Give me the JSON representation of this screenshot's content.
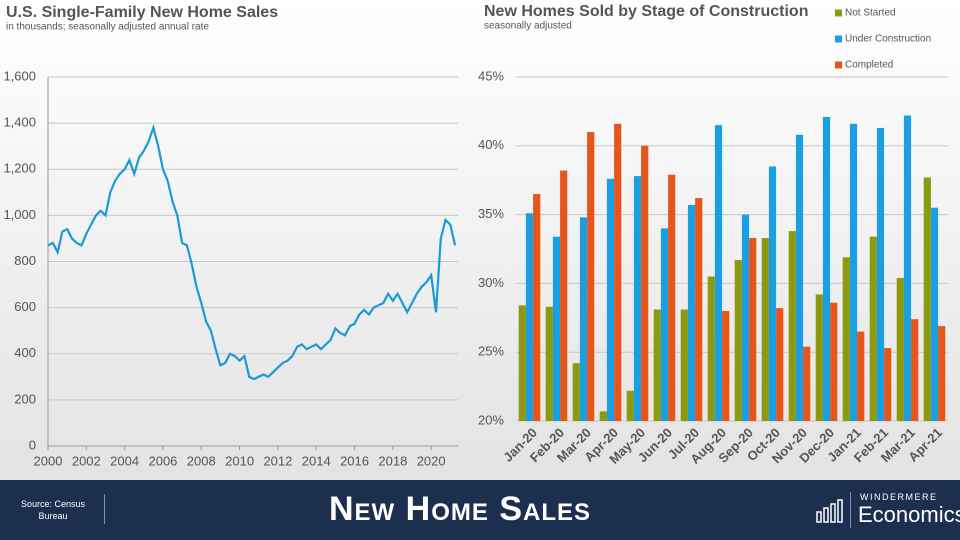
{
  "chart_data": [
    {
      "type": "line",
      "title": "U.S. Single-Family New Home Sales",
      "subtitle": "in thousands; seasonally adjusted annual rate",
      "x": [
        2000,
        2000.25,
        2000.5,
        2000.75,
        2001,
        2001.25,
        2001.5,
        2001.75,
        2002,
        2002.25,
        2002.5,
        2002.75,
        2003,
        2003.25,
        2003.5,
        2003.75,
        2004,
        2004.25,
        2004.5,
        2004.75,
        2005,
        2005.25,
        2005.5,
        2005.75,
        2006,
        2006.25,
        2006.5,
        2006.75,
        2007,
        2007.25,
        2007.5,
        2007.75,
        2008,
        2008.25,
        2008.5,
        2008.75,
        2009,
        2009.25,
        2009.5,
        2009.75,
        2010,
        2010.25,
        2010.5,
        2010.75,
        2011,
        2011.25,
        2011.5,
        2011.75,
        2012,
        2012.25,
        2012.5,
        2012.75,
        2013,
        2013.25,
        2013.5,
        2013.75,
        2014,
        2014.25,
        2014.5,
        2014.75,
        2015,
        2015.25,
        2015.5,
        2015.75,
        2016,
        2016.25,
        2016.5,
        2016.75,
        2017,
        2017.25,
        2017.5,
        2017.75,
        2018,
        2018.25,
        2018.5,
        2018.75,
        2019,
        2019.25,
        2019.5,
        2019.75,
        2020,
        2020.25,
        2020.5,
        2020.75,
        2021,
        2021.25
      ],
      "values": [
        870,
        880,
        840,
        930,
        940,
        900,
        880,
        870,
        920,
        960,
        1000,
        1020,
        1000,
        1100,
        1150,
        1180,
        1200,
        1240,
        1180,
        1250,
        1280,
        1320,
        1380,
        1300,
        1200,
        1150,
        1060,
        1000,
        880,
        870,
        790,
        690,
        620,
        540,
        500,
        420,
        350,
        360,
        400,
        390,
        370,
        390,
        300,
        290,
        300,
        310,
        300,
        320,
        340,
        360,
        370,
        390,
        430,
        440,
        420,
        430,
        440,
        420,
        440,
        460,
        510,
        490,
        480,
        520,
        530,
        570,
        590,
        570,
        600,
        610,
        620,
        660,
        630,
        660,
        620,
        580,
        620,
        660,
        690,
        710,
        740,
        580,
        900,
        980,
        960,
        870
      ],
      "color": "#1b9ad6",
      "xlim": [
        2000,
        2021.4
      ],
      "xticks": [
        2000,
        2002,
        2004,
        2006,
        2008,
        2010,
        2012,
        2014,
        2016,
        2018,
        2020
      ],
      "ylim": [
        0,
        1600
      ],
      "yticks": [
        0,
        200,
        400,
        600,
        800,
        {
          "value": 1000,
          "label": "1,000"
        },
        {
          "value": 1200,
          "label": "1,200"
        },
        {
          "value": 1400,
          "label": "1,400"
        },
        {
          "value": 1600,
          "label": "1,600"
        }
      ],
      "grid": true
    },
    {
      "type": "bar",
      "title": "New Homes Sold by Stage of Construction",
      "subtitle": "seasonally adjusted",
      "categories": [
        "Jan-20",
        "Feb-20",
        "Mar-20",
        "Apr-20",
        "May-20",
        "Jun-20",
        "Jul-20",
        "Aug-20",
        "Sep-20",
        "Oct-20",
        "Nov-20",
        "Dec-20",
        "Jan-21",
        "Feb-21",
        "Mar-21",
        "Apr-21"
      ],
      "series": [
        {
          "name": "Not Started",
          "color": "#8c9a12",
          "values": [
            28.4,
            28.3,
            24.2,
            20.7,
            22.2,
            28.1,
            28.1,
            30.5,
            31.7,
            33.3,
            33.8,
            29.2,
            31.9,
            33.4,
            30.4,
            37.7
          ]
        },
        {
          "name": "Under Construction",
          "color": "#1aa0e2",
          "values": [
            35.1,
            33.4,
            34.8,
            37.6,
            37.8,
            34.0,
            35.7,
            41.5,
            35.0,
            38.5,
            40.8,
            42.1,
            41.6,
            41.3,
            42.2,
            35.5
          ]
        },
        {
          "name": "Completed",
          "color": "#e6561b",
          "values": [
            36.5,
            38.2,
            41.0,
            41.6,
            40.0,
            37.9,
            36.2,
            28.0,
            33.3,
            28.2,
            25.4,
            28.6,
            26.5,
            25.3,
            27.4,
            26.9
          ]
        }
      ],
      "ylim": [
        20,
        45
      ],
      "yticks": [
        {
          "value": 20,
          "label": "20%"
        },
        {
          "value": 25,
          "label": "25%"
        },
        {
          "value": 30,
          "label": "30%"
        },
        {
          "value": 35,
          "label": "35%"
        },
        {
          "value": 40,
          "label": "40%"
        },
        {
          "value": 45,
          "label": "45%"
        }
      ],
      "grid": true,
      "legend": "top-right"
    }
  ],
  "footer": {
    "source": "Source: Census Bureau",
    "title": "New Home Sales",
    "brand": "WINDERMERE",
    "brand_sub": "Economics"
  }
}
